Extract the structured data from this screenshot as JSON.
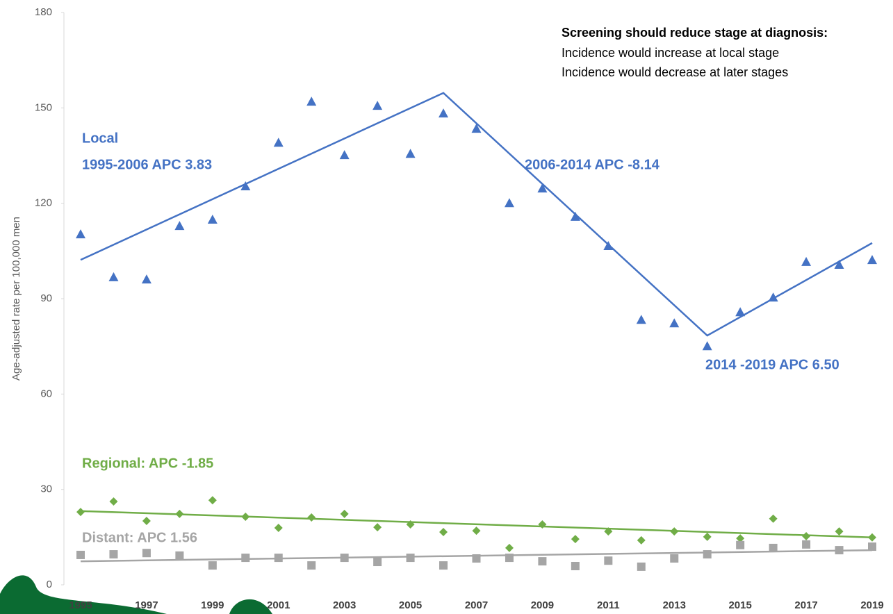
{
  "chart_data": {
    "type": "scatter",
    "y_label": "Age-adjusted rate per 100,000 men",
    "xlim": [
      1995,
      2019
    ],
    "xticks": [
      1995,
      1997,
      1999,
      2001,
      2003,
      2005,
      2007,
      2009,
      2011,
      2013,
      2015,
      2017,
      2019
    ],
    "ylim": [
      0,
      180
    ],
    "yticks": [
      0,
      30,
      60,
      90,
      120,
      150,
      180
    ],
    "grid": false,
    "series": [
      {
        "color": "#4472c4",
        "marker": "triangle",
        "x": [
          1995,
          1996,
          1997,
          1998,
          1999,
          2000,
          2001,
          2002,
          2003,
          2004,
          2005,
          2006,
          2007,
          2008,
          2009,
          2010,
          2011,
          2012,
          2013,
          2014,
          2015,
          2016,
          2017,
          2018,
          2019
        ],
        "values": [
          110.3,
          96.8,
          96.1,
          112.9,
          114.9,
          125.4,
          139.1,
          152.0,
          135.2,
          150.7,
          135.6,
          148.3,
          143.5,
          120.1,
          124.7,
          115.8,
          106.6,
          83.4,
          82.3,
          75.1,
          85.8,
          90.4,
          101.6,
          100.7,
          102.2
        ]
      },
      {
        "color": "#70ad47",
        "marker": "diamond",
        "x": [
          1995,
          1996,
          1997,
          1998,
          1999,
          2000,
          2001,
          2002,
          2003,
          2004,
          2005,
          2006,
          2007,
          2008,
          2009,
          2010,
          2011,
          2012,
          2013,
          2014,
          2015,
          2016,
          2017,
          2018,
          2019
        ],
        "values": [
          22.9,
          26.2,
          20.1,
          22.3,
          26.6,
          21.4,
          17.9,
          21.2,
          22.3,
          18.1,
          19.0,
          16.6,
          17.0,
          11.6,
          19.0,
          14.4,
          16.8,
          14.0,
          16.8,
          15.1,
          14.6,
          20.8,
          15.3,
          16.8,
          14.9
        ]
      },
      {
        "color": "#a5a5a5",
        "marker": "square",
        "x": [
          1995,
          1996,
          1997,
          1998,
          1999,
          2000,
          2001,
          2002,
          2003,
          2004,
          2005,
          2006,
          2007,
          2008,
          2009,
          2010,
          2011,
          2012,
          2013,
          2014,
          2015,
          2016,
          2017,
          2018,
          2019
        ],
        "values": [
          9.4,
          9.6,
          10.0,
          9.2,
          6.1,
          8.5,
          8.5,
          6.1,
          8.5,
          7.2,
          8.5,
          6.1,
          8.3,
          8.5,
          7.4,
          5.9,
          7.6,
          5.7,
          8.3,
          9.6,
          12.5,
          11.6,
          12.7,
          10.9,
          12.0
        ]
      },
      {
        "color": "#4472c4",
        "marker": "line",
        "x": [
          1995,
          2006,
          2014,
          2019
        ],
        "values": [
          102.2,
          154.7,
          78.4,
          107.5
        ]
      },
      {
        "color": "#70ad47",
        "marker": "line",
        "x": [
          1995,
          2019
        ],
        "values": [
          23.2,
          14.9
        ]
      },
      {
        "color": "#a5a5a5",
        "marker": "line",
        "x": [
          1995,
          2019
        ],
        "values": [
          7.4,
          10.9
        ]
      }
    ],
    "annotations": [
      {
        "text": "Local",
        "color": "#4472c4"
      },
      {
        "text": "1995-2006 APC 3.83",
        "color": "#4472c4"
      },
      {
        "text": "2006-2014 APC -8.14",
        "color": "#4472c4"
      },
      {
        "text": "2014 -2019 APC 6.50",
        "color": "#4472c4"
      },
      {
        "text": "Regional: APC -1.85",
        "color": "#70ad47"
      },
      {
        "text": "Distant: APC 1.56",
        "color": "#a5a5a5"
      }
    ],
    "note": {
      "title": "Screening should reduce stage at diagnosis:",
      "lines": [
        "Incidence would increase at local stage",
        "Incidence would decrease at later stages"
      ]
    }
  }
}
